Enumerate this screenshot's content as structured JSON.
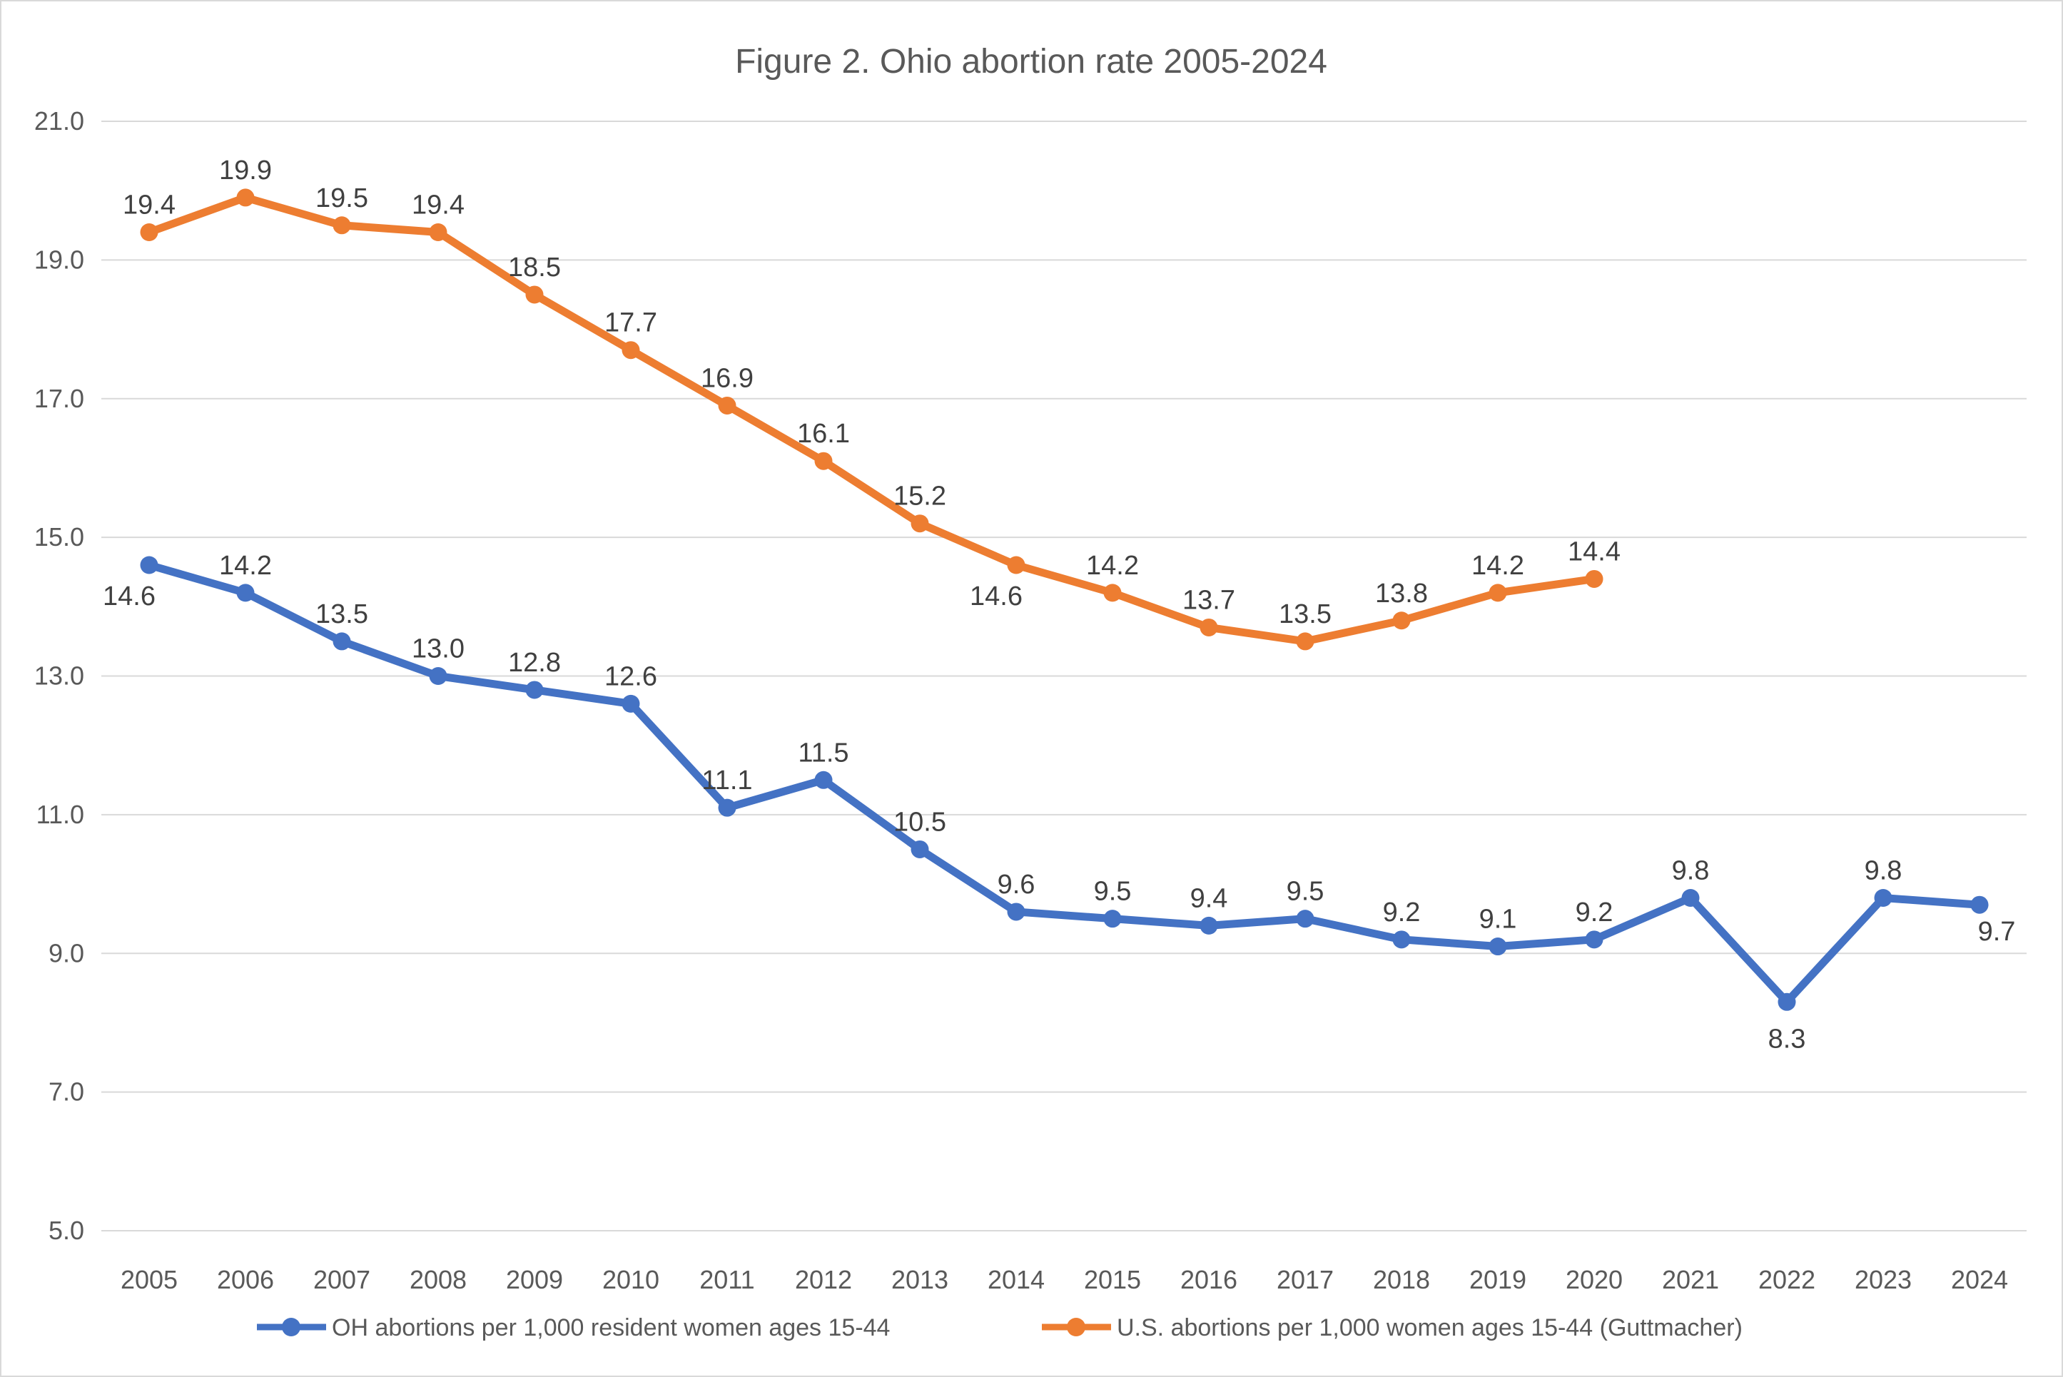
{
  "page": {
    "background": "#FFFFFF",
    "border_color": "#D9D9D9"
  },
  "chart_data": {
    "type": "line",
    "title": "Figure 2. Ohio abortion rate 2005-2024",
    "title_color": "#595959",
    "categories": [
      "2005",
      "2006",
      "2007",
      "2008",
      "2009",
      "2010",
      "2011",
      "2012",
      "2013",
      "2014",
      "2015",
      "2016",
      "2017",
      "2018",
      "2019",
      "2020",
      "2021",
      "2022",
      "2023",
      "2024"
    ],
    "series": [
      {
        "name": "OH abortions per 1,000 resident women ages 15-44",
        "color": "#4472C4",
        "values": [
          14.6,
          14.2,
          13.5,
          13.0,
          12.8,
          12.6,
          11.1,
          11.5,
          10.5,
          9.6,
          9.5,
          9.4,
          9.5,
          9.2,
          9.1,
          9.2,
          9.8,
          8.3,
          9.8,
          9.7
        ],
        "label_positions": {
          "0": "below-left",
          "17": "below",
          "19": "below-right"
        }
      },
      {
        "name": "U.S. abortions per 1,000 women ages 15-44 (Guttmacher)",
        "color": "#ED7D31",
        "values": [
          19.4,
          19.9,
          19.5,
          19.4,
          18.5,
          17.7,
          16.9,
          16.1,
          15.2,
          14.6,
          14.2,
          13.7,
          13.5,
          13.8,
          14.2,
          14.4,
          null,
          null,
          null,
          null
        ],
        "label_positions": {
          "9": "below-left"
        }
      }
    ],
    "y_axis": {
      "min": 5.0,
      "max": 21.0,
      "step": 2.0,
      "decimals": 1,
      "tick_labels": [
        "5.0",
        "7.0",
        "9.0",
        "11.0",
        "13.0",
        "15.0",
        "17.0",
        "19.0",
        "21.0"
      ]
    },
    "axis_label_color": "#595959",
    "data_label_color": "#404040",
    "gridline_color": "#D9D9D9",
    "grid": true,
    "legend_position": "bottom",
    "ylim": [
      5.0,
      21.0
    ]
  }
}
